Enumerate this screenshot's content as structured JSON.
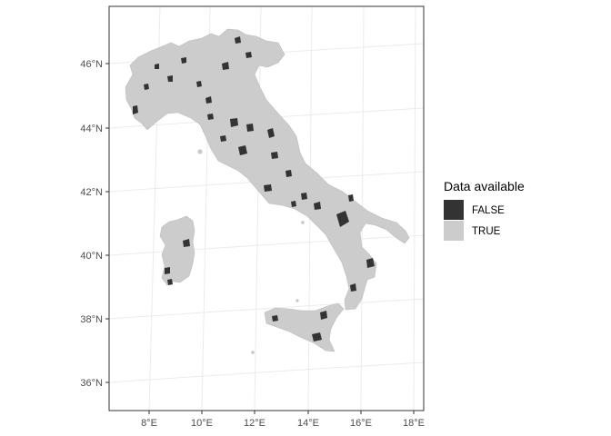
{
  "chart_data": {
    "type": "map",
    "region": "Italy",
    "grid": true,
    "legend_position": "right",
    "x_axis": {
      "ticks": [
        {
          "value": 8,
          "label": "8°E"
        },
        {
          "value": 10,
          "label": "10°E"
        },
        {
          "value": 12,
          "label": "12°E"
        },
        {
          "value": 14,
          "label": "14°E"
        },
        {
          "value": 16,
          "label": "16°E"
        },
        {
          "value": 18,
          "label": "18°E"
        }
      ]
    },
    "y_axis": {
      "ticks": [
        {
          "value": 46,
          "label": "46°N"
        },
        {
          "value": 44,
          "label": "44°N"
        },
        {
          "value": 42,
          "label": "42°N"
        },
        {
          "value": 40,
          "label": "40°N"
        },
        {
          "value": 38,
          "label": "38°N"
        },
        {
          "value": 36,
          "label": "36°N"
        }
      ]
    },
    "legend": {
      "title": "Data available",
      "entries": [
        {
          "label": "FALSE",
          "color": "#333333"
        },
        {
          "label": "TRUE",
          "color": "#cccccc"
        }
      ]
    },
    "colors": {
      "available": "#cccccc",
      "unavailable": "#333333",
      "grid": "#ebebeb",
      "panel_border": "#333333"
    }
  }
}
